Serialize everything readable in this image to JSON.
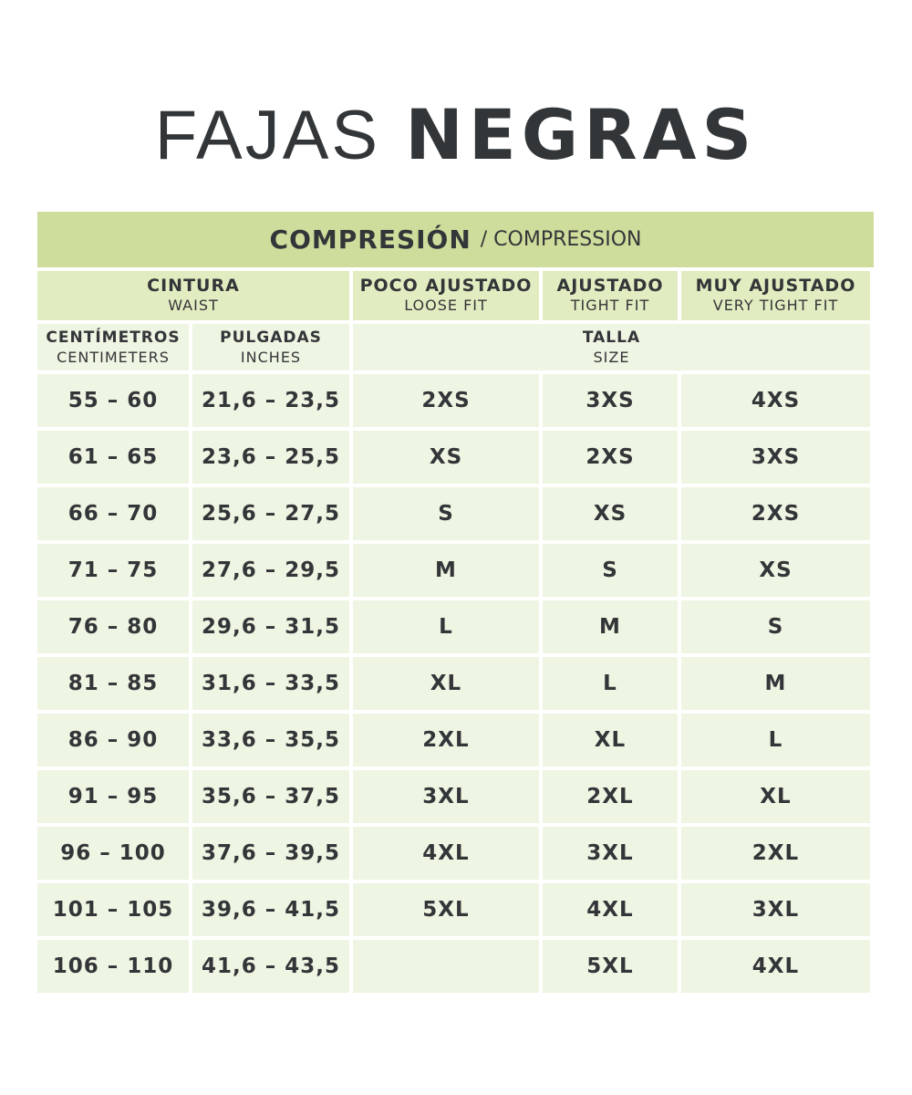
{
  "title": {
    "light": "FAJAS",
    "bold": "NEGRAS"
  },
  "band": {
    "main": "COMPRESIÓN",
    "sub": "/ COMPRESSION"
  },
  "headers": {
    "waist": {
      "es": "CINTURA",
      "en": "WAIST"
    },
    "loose": {
      "es": "POCO AJUSTADO",
      "en": "LOOSE FIT"
    },
    "tight": {
      "es": "AJUSTADO",
      "en": "TIGHT FIT"
    },
    "very_tight": {
      "es": "MUY AJUSTADO",
      "en": "VERY TIGHT FIT"
    },
    "cm": {
      "es": "CENTÍMETROS",
      "en": "CENTIMETERS"
    },
    "in": {
      "es": "PULGADAS",
      "en": "INCHES"
    },
    "size": {
      "es": "TALLA",
      "en": "SIZE"
    }
  },
  "rows": [
    [
      "55 – 60",
      "21,6 – 23,5",
      "2XS",
      "3XS",
      "4XS"
    ],
    [
      "61 – 65",
      "23,6 – 25,5",
      "XS",
      "2XS",
      "3XS"
    ],
    [
      "66 – 70",
      "25,6 – 27,5",
      "S",
      "XS",
      "2XS"
    ],
    [
      "71 – 75",
      "27,6 – 29,5",
      "M",
      "S",
      "XS"
    ],
    [
      "76 – 80",
      "29,6 – 31,5",
      "L",
      "M",
      "S"
    ],
    [
      "81 – 85",
      "31,6 – 33,5",
      "XL",
      "L",
      "M"
    ],
    [
      "86 – 90",
      "33,6 – 35,5",
      "2XL",
      "XL",
      "L"
    ],
    [
      "91 – 95",
      "35,6 – 37,5",
      "3XL",
      "2XL",
      "XL"
    ],
    [
      "96 – 100",
      "37,6 – 39,5",
      "4XL",
      "3XL",
      "2XL"
    ],
    [
      "101 – 105",
      "39,6 – 41,5",
      "5XL",
      "4XL",
      "3XL"
    ],
    [
      "106 – 110",
      "41,6 – 43,5",
      "",
      "5XL",
      "4XL"
    ]
  ],
  "colors": {
    "band": "#cfdd9c",
    "header": "#e2ecc1",
    "cell": "#eff5e3",
    "text": "#333638"
  }
}
